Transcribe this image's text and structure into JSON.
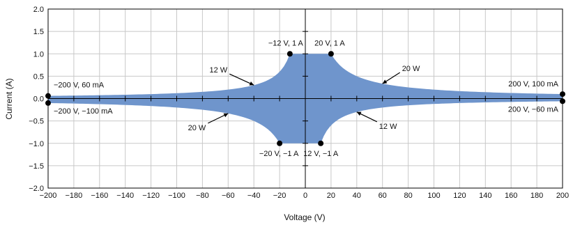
{
  "chart_data": {
    "type": "area",
    "title": "",
    "xlabel": "Voltage (V)",
    "ylabel": "Current (A)",
    "xlim": [
      -200,
      200
    ],
    "ylim": [
      -2,
      2
    ],
    "xticks": [
      -200,
      -180,
      -160,
      -140,
      -120,
      -100,
      -80,
      -60,
      -40,
      -20,
      0,
      20,
      40,
      60,
      80,
      100,
      120,
      140,
      160,
      180,
      200
    ],
    "xtick_labels": [
      "−200",
      "−180",
      "−160",
      "−140",
      "−120",
      "−100",
      "−80",
      "−60",
      "−40",
      "−20",
      "0",
      "20",
      "40",
      "60",
      "80",
      "100",
      "120",
      "140",
      "160",
      "180",
      "200"
    ],
    "yticks": [
      -2.0,
      -1.5,
      -1.0,
      -0.5,
      0.0,
      0.5,
      1.0,
      1.5,
      2.0
    ],
    "ytick_labels": [
      "−2.0",
      "−1.5",
      "−1.0",
      "−0.5",
      "0.0",
      "0.5",
      "1.0",
      "1.5",
      "2.0"
    ],
    "grid": true,
    "fill_color": "#6f95cc",
    "region": {
      "upper_boundary": [
        {
          "segment": "constant-power",
          "power_W": 12,
          "x": [
            -200,
            -12
          ]
        },
        {
          "segment": "constant-current",
          "current_A": 1,
          "x": [
            -12,
            20
          ]
        },
        {
          "segment": "constant-power",
          "power_W": 20,
          "x": [
            20,
            200
          ]
        }
      ],
      "lower_boundary": [
        {
          "segment": "constant-power",
          "power_W": 20,
          "x": [
            -200,
            -20
          ]
        },
        {
          "segment": "constant-current",
          "current_A": -1,
          "x": [
            -20,
            12
          ]
        },
        {
          "segment": "constant-power",
          "power_W": 12,
          "x": [
            12,
            200
          ]
        }
      ]
    },
    "points": [
      {
        "x": -200,
        "y": 0.06,
        "label": "−200 V, 60 mA"
      },
      {
        "x": -200,
        "y": -0.1,
        "label": "−200 V, −100 mA"
      },
      {
        "x": -12,
        "y": 1.0,
        "label": "−12 V, 1 A"
      },
      {
        "x": 20,
        "y": 1.0,
        "label": "20 V, 1 A"
      },
      {
        "x": -20,
        "y": -1.0,
        "label": "−20 V, −1 A"
      },
      {
        "x": 12,
        "y": -1.0,
        "label": "12 V, −1 A"
      },
      {
        "x": 200,
        "y": 0.1,
        "label": "200 V, 100 mA"
      },
      {
        "x": 200,
        "y": -0.06,
        "label": "200 V, −60 mA"
      }
    ],
    "annotations": [
      {
        "text": "12 W",
        "x": -40,
        "y": 0.3
      },
      {
        "text": "20 W",
        "x": 60,
        "y": 0.333
      },
      {
        "text": "20 W",
        "x": -60,
        "y": -0.333
      },
      {
        "text": "12 W",
        "x": 40,
        "y": -0.3
      }
    ]
  }
}
